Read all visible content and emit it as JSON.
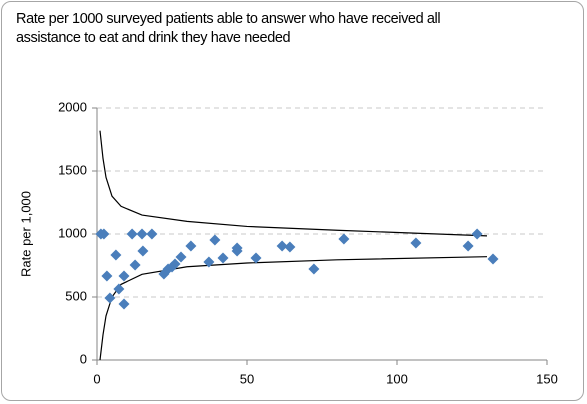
{
  "chart_data": {
    "type": "scatter",
    "title": "Rate per 1000 surveyed patients able to answer who have received all assistance to eat and drink they have needed",
    "y_label": "Rate per 1,000",
    "xlim": [
      0,
      150
    ],
    "xticks": [
      0,
      50,
      100,
      150
    ],
    "ylim": [
      0,
      2000
    ],
    "yticks": [
      0,
      500,
      1000,
      1500,
      2000
    ],
    "grid": true,
    "series": [
      {
        "kind": "scatter",
        "color": "#4a7ebb",
        "x": [
          1.3,
          2.3,
          3.3,
          4.3,
          6.3,
          7.3,
          9,
          9,
          11.7,
          12.7,
          15,
          15.3,
          18.3,
          22.3,
          23.7,
          25,
          26,
          28,
          31.3,
          37.3,
          39.3,
          42,
          46.7,
          46.7,
          53,
          61.7,
          64.3,
          72.3,
          82.3,
          106.3,
          123.7,
          126.7,
          132
        ],
        "values": [
          1000,
          1000,
          667,
          492,
          833,
          563,
          667,
          444,
          1000,
          754,
          1000,
          865,
          1000,
          683,
          722,
          738,
          762,
          817,
          905,
          778,
          952,
          810,
          889,
          865,
          810,
          905,
          897,
          722,
          960,
          929,
          905,
          1000,
          802
        ]
      },
      {
        "kind": "line",
        "color": "#000000",
        "x": [
          1,
          2,
          3,
          5,
          8,
          15,
          30,
          50,
          80,
          130
        ],
        "values": [
          1820,
          1600,
          1450,
          1300,
          1220,
          1150,
          1100,
          1060,
          1030,
          985
        ]
      },
      {
        "kind": "line",
        "color": "#000000",
        "x": [
          1,
          2,
          3,
          5,
          8,
          15,
          30,
          50,
          80,
          130
        ],
        "values": [
          0,
          200,
          350,
          500,
          600,
          680,
          740,
          770,
          795,
          820
        ]
      }
    ]
  }
}
